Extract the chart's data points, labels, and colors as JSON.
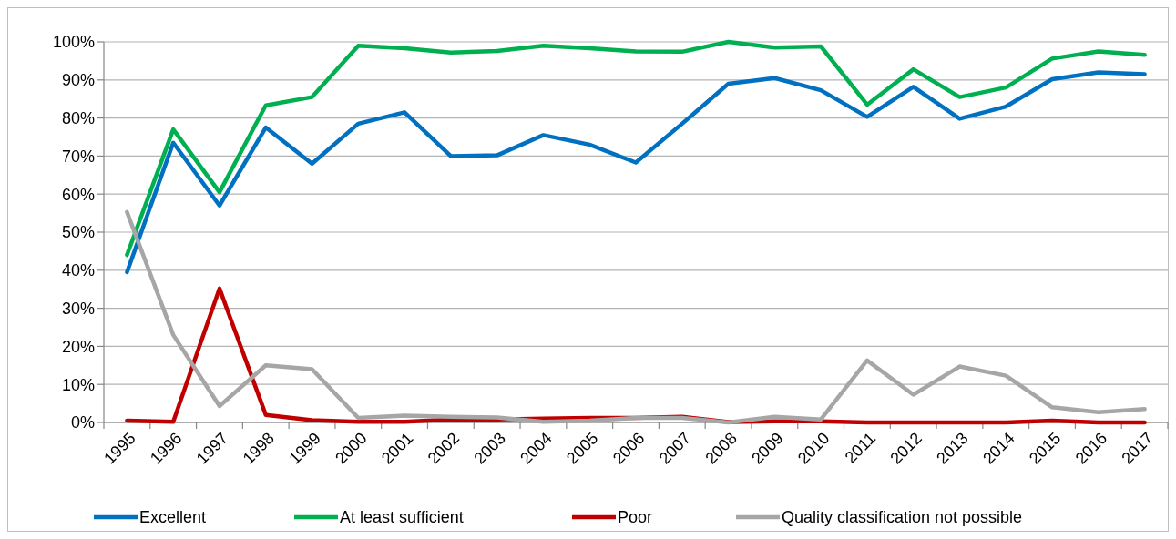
{
  "chart_data": {
    "type": "line",
    "categories": [
      "1995",
      "1996",
      "1997",
      "1998",
      "1999",
      "2000",
      "2001",
      "2002",
      "2003",
      "2004",
      "2005",
      "2006",
      "2007",
      "2008",
      "2009",
      "2010",
      "2011",
      "2012",
      "2013",
      "2014",
      "2015",
      "2016",
      "2017"
    ],
    "ylim": [
      0,
      100
    ],
    "yticks": [
      {
        "value": 0,
        "label": "0%"
      },
      {
        "value": 10,
        "label": "10%"
      },
      {
        "value": 20,
        "label": "20%"
      },
      {
        "value": 30,
        "label": "30%"
      },
      {
        "value": 40,
        "label": "40%"
      },
      {
        "value": 50,
        "label": "50%"
      },
      {
        "value": 60,
        "label": "60%"
      },
      {
        "value": 70,
        "label": "70%"
      },
      {
        "value": 80,
        "label": "80%"
      },
      {
        "value": 90,
        "label": "90%"
      },
      {
        "value": 100,
        "label": "100%"
      }
    ],
    "grid": "y",
    "legend": "bottom",
    "marker": "none",
    "line_style": "solid",
    "series": [
      {
        "name": "Excellent",
        "color": "#0070c0",
        "values": [
          39.5,
          73.5,
          57,
          77.5,
          68,
          78.5,
          81.5,
          70,
          70.2,
          75.5,
          73,
          68.3,
          78.5,
          89,
          90.5,
          87.3,
          80.3,
          88.2,
          79.8,
          83,
          90.2,
          92,
          91.5
        ]
      },
      {
        "name": "At least sufficient",
        "color": "#00b050",
        "values": [
          44,
          77,
          60.5,
          83.3,
          85.5,
          99,
          98.3,
          97.2,
          97.6,
          99,
          98.3,
          97.5,
          97.4,
          100,
          98.5,
          98.8,
          83.5,
          92.8,
          85.5,
          88,
          95.6,
          97.5,
          96.6
        ]
      },
      {
        "name": "Poor",
        "color": "#c00000",
        "values": [
          0.5,
          0.2,
          35.2,
          2,
          0.6,
          0.2,
          0.2,
          0.8,
          0.8,
          1,
          1.2,
          1.2,
          1.5,
          0.1,
          0.3,
          0.3,
          0,
          0,
          0,
          0,
          0.5,
          0,
          0
        ]
      },
      {
        "name": "Quality classification not possible",
        "color": "#a6a6a6",
        "values": [
          55.3,
          23,
          4.3,
          15,
          14,
          1.2,
          1.8,
          1.5,
          1.3,
          0.2,
          0.5,
          1.2,
          1.2,
          0,
          1.5,
          0.8,
          16.3,
          7.3,
          14.7,
          12.3,
          4,
          2.7,
          3.5
        ]
      }
    ]
  }
}
